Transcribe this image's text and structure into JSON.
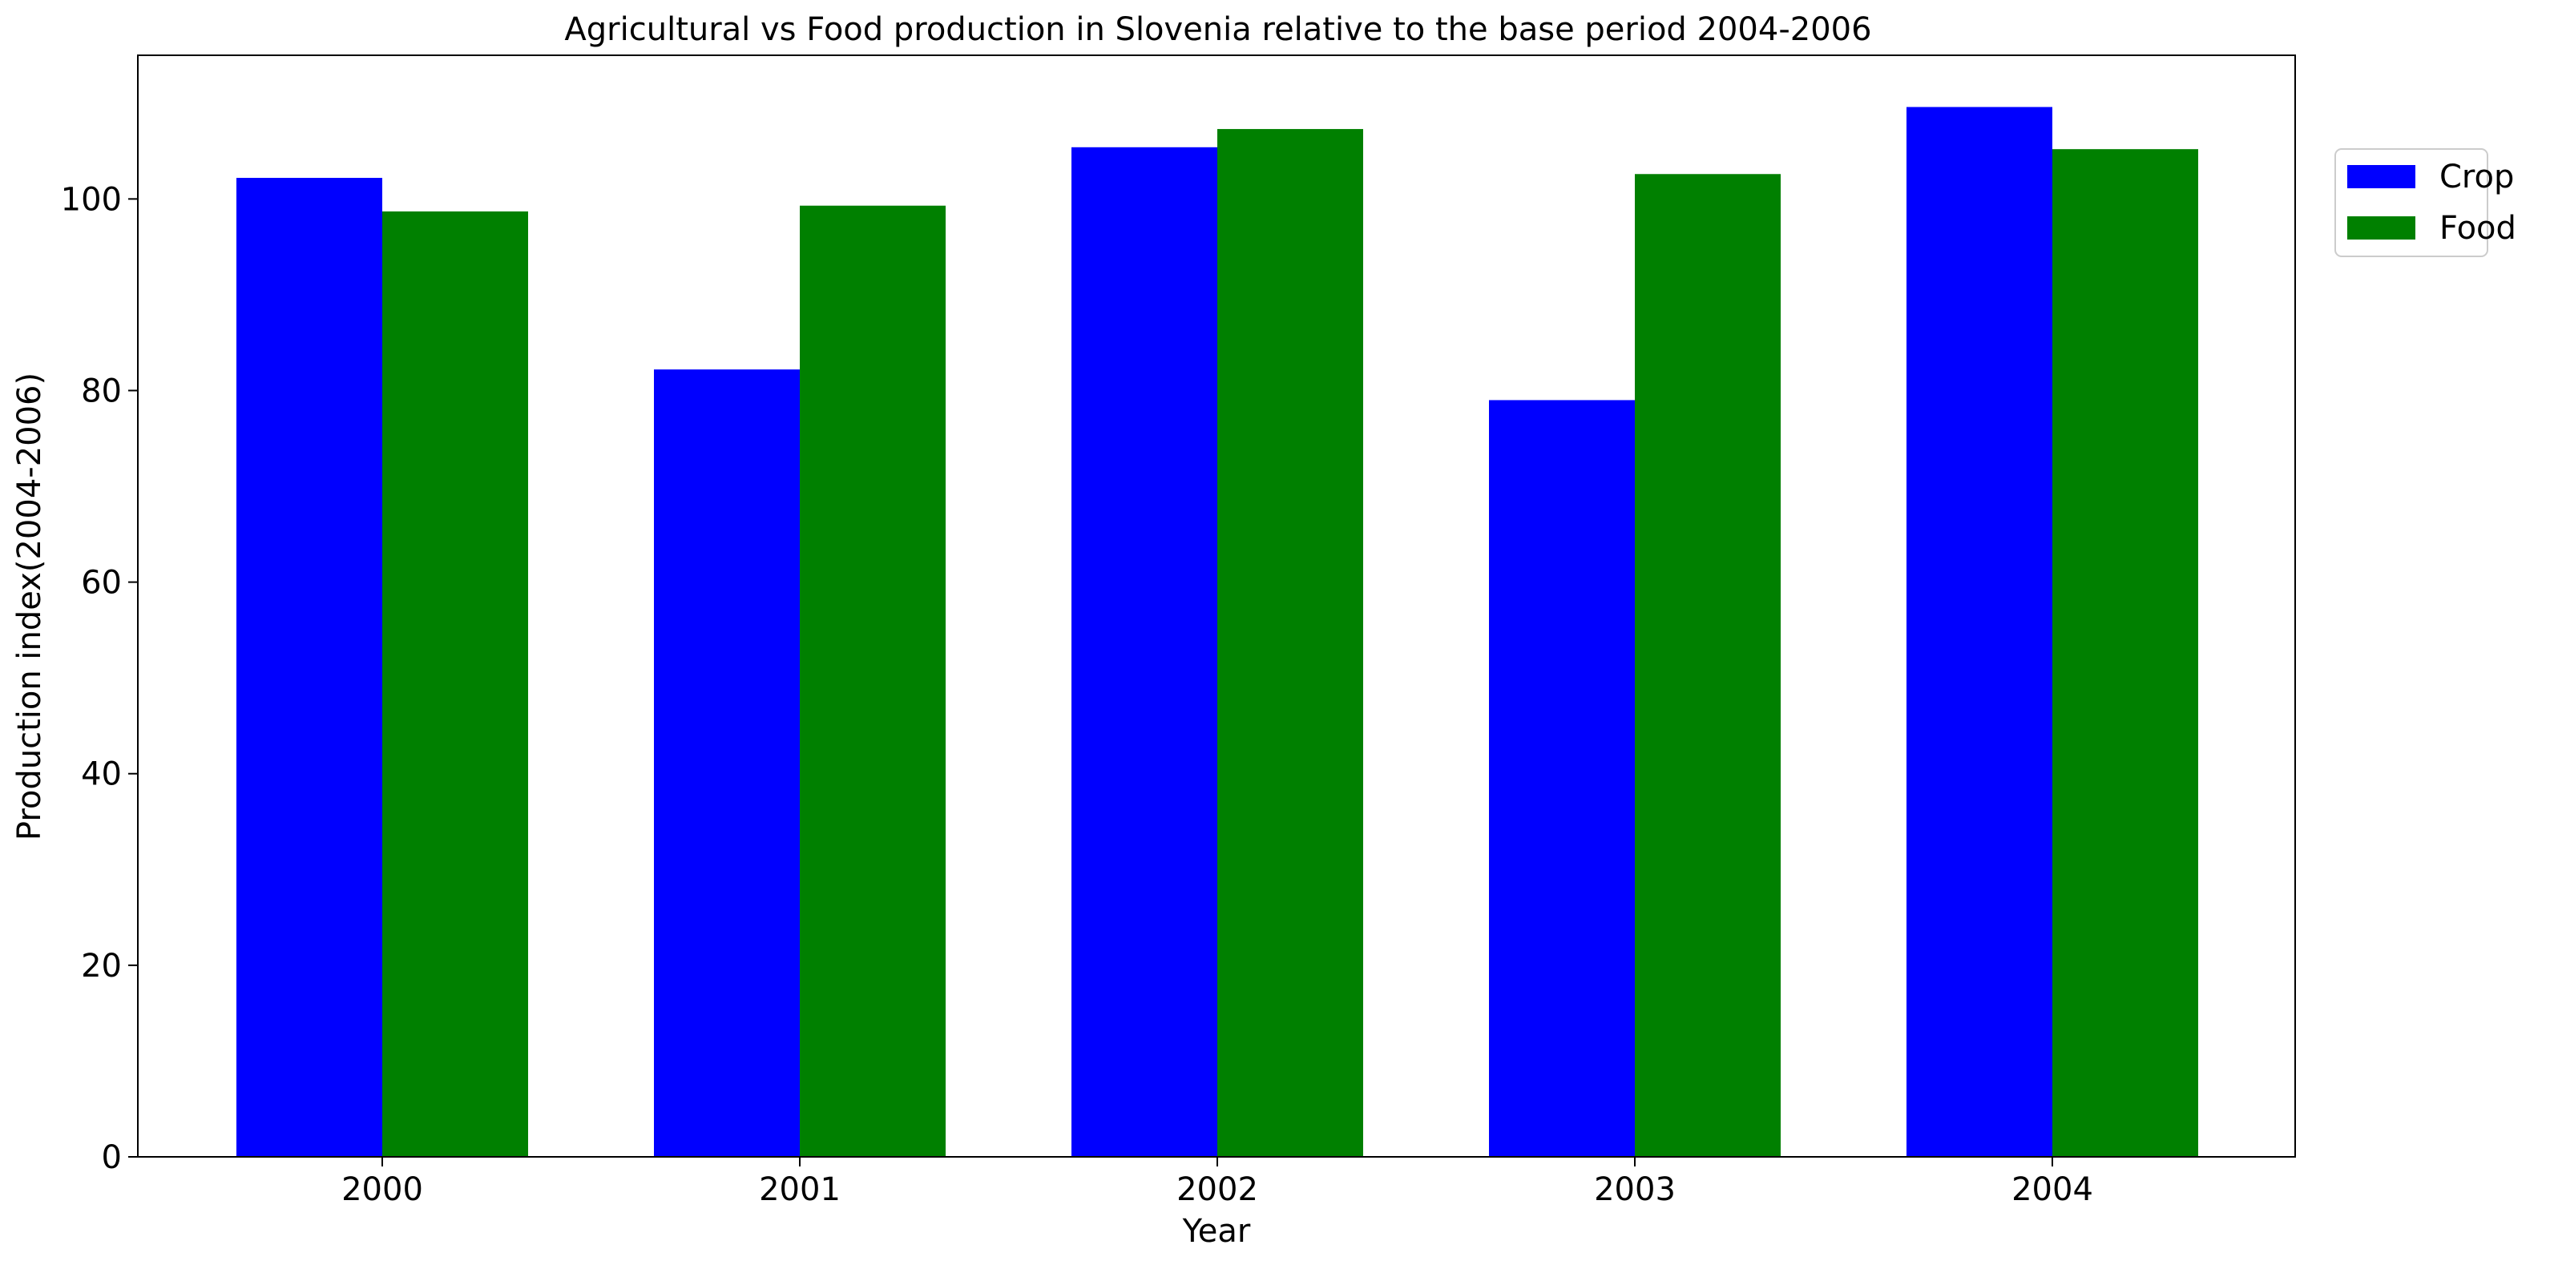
{
  "chart_data": {
    "type": "bar",
    "title": "Agricultural vs Food production in Slovenia relative to the base period 2004-2006",
    "xlabel": "Year",
    "ylabel": "Production index(2004-2006)",
    "categories": [
      "2000",
      "2001",
      "2002",
      "2003",
      "2004"
    ],
    "series": [
      {
        "name": "Crop",
        "color": "#0000ff",
        "values": [
          102.2,
          82.2,
          105.4,
          79.0,
          109.6
        ]
      },
      {
        "name": "Food",
        "color": "#008000",
        "values": [
          98.7,
          99.3,
          107.3,
          102.6,
          105.2
        ]
      }
    ],
    "ylim": [
      0,
      115
    ],
    "yticks": [
      0,
      20,
      40,
      60,
      80,
      100
    ],
    "grid": false,
    "legend_position": "upper-right-outside"
  }
}
